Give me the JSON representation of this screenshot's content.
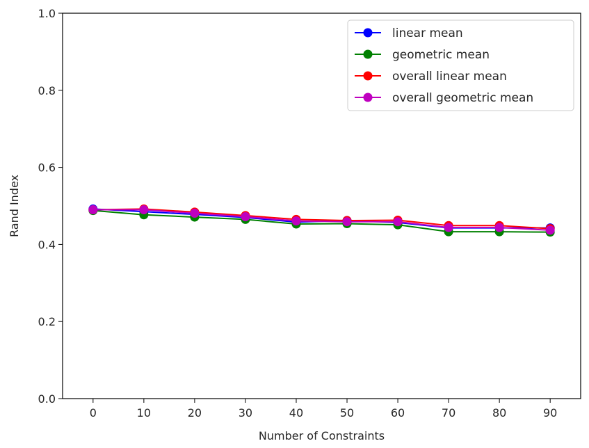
{
  "chart_data": {
    "type": "line",
    "title": "",
    "xlabel": "Number of Constraints",
    "ylabel": "Rand Index",
    "x": [
      0,
      10,
      20,
      30,
      40,
      50,
      60,
      70,
      80,
      90
    ],
    "xticks": [
      0,
      10,
      20,
      30,
      40,
      50,
      60,
      70,
      80,
      90
    ],
    "xlim": [
      -6,
      96
    ],
    "ylim": [
      0.0,
      1.0
    ],
    "yticks": [
      0.0,
      0.2,
      0.4,
      0.6,
      0.8,
      1.0
    ],
    "ytick_labels": [
      "0.0",
      "0.2",
      "0.4",
      "0.6",
      "0.8",
      "1.0"
    ],
    "grid": false,
    "legend_position": "top-right",
    "series": [
      {
        "name": "linear mean",
        "color": "#0000ff",
        "values": [
          0.492,
          0.485,
          0.478,
          0.47,
          0.458,
          0.462,
          0.457,
          0.443,
          0.443,
          0.443
        ]
      },
      {
        "name": "geometric mean",
        "color": "#008000",
        "values": [
          0.488,
          0.477,
          0.471,
          0.465,
          0.453,
          0.454,
          0.451,
          0.433,
          0.433,
          0.432
        ]
      },
      {
        "name": "overall linear mean",
        "color": "#ff0000",
        "values": [
          0.49,
          0.492,
          0.484,
          0.475,
          0.465,
          0.462,
          0.463,
          0.449,
          0.449,
          0.441
        ]
      },
      {
        "name": "overall geometric mean",
        "color": "#bf00bf",
        "values": [
          0.49,
          0.49,
          0.481,
          0.472,
          0.461,
          0.459,
          0.459,
          0.444,
          0.444,
          0.437
        ]
      }
    ]
  }
}
